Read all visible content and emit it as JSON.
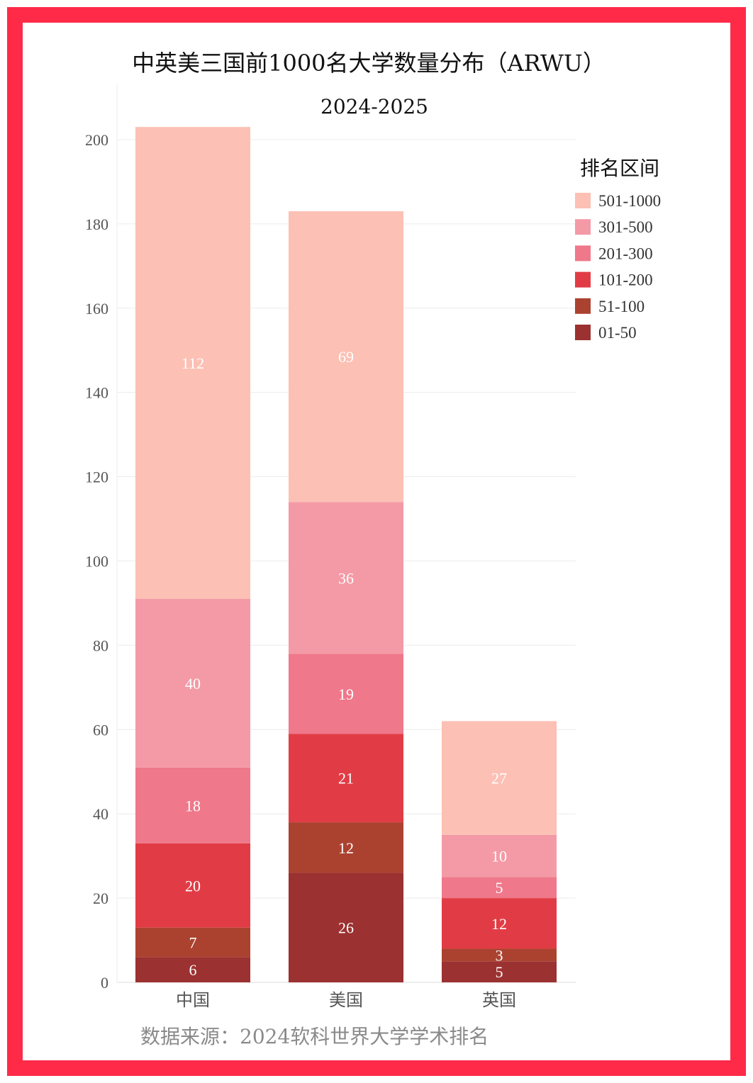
{
  "chart_data": {
    "type": "bar",
    "stacked": true,
    "title": "中英美三国前1000名大学数量分布（ARWU）",
    "subtitle": "2024-2025",
    "categories": [
      "中国",
      "美国",
      "英国"
    ],
    "legend": {
      "title": "排名区间",
      "placement": "right"
    },
    "series": [
      {
        "name": "01-50",
        "color": "#9b3130",
        "values": [
          6,
          26,
          5
        ]
      },
      {
        "name": "51-100",
        "color": "#ab4230",
        "values": [
          7,
          12,
          3
        ]
      },
      {
        "name": "101-200",
        "color": "#e13c45",
        "values": [
          20,
          21,
          12
        ]
      },
      {
        "name": "201-300",
        "color": "#ef788a",
        "values": [
          18,
          19,
          5
        ]
      },
      {
        "name": "301-500",
        "color": "#f49aa6",
        "values": [
          40,
          36,
          10
        ]
      },
      {
        "name": "501-1000",
        "color": "#fcc0b4",
        "values": [
          112,
          69,
          27
        ]
      }
    ],
    "xlabel": "",
    "ylabel": "",
    "ylim": [
      0,
      214
    ],
    "yticks": [
      0,
      20,
      40,
      60,
      80,
      100,
      120,
      140,
      160,
      180,
      200
    ],
    "grid": true,
    "source": "数据来源：2024软科世界大学学术排名"
  }
}
